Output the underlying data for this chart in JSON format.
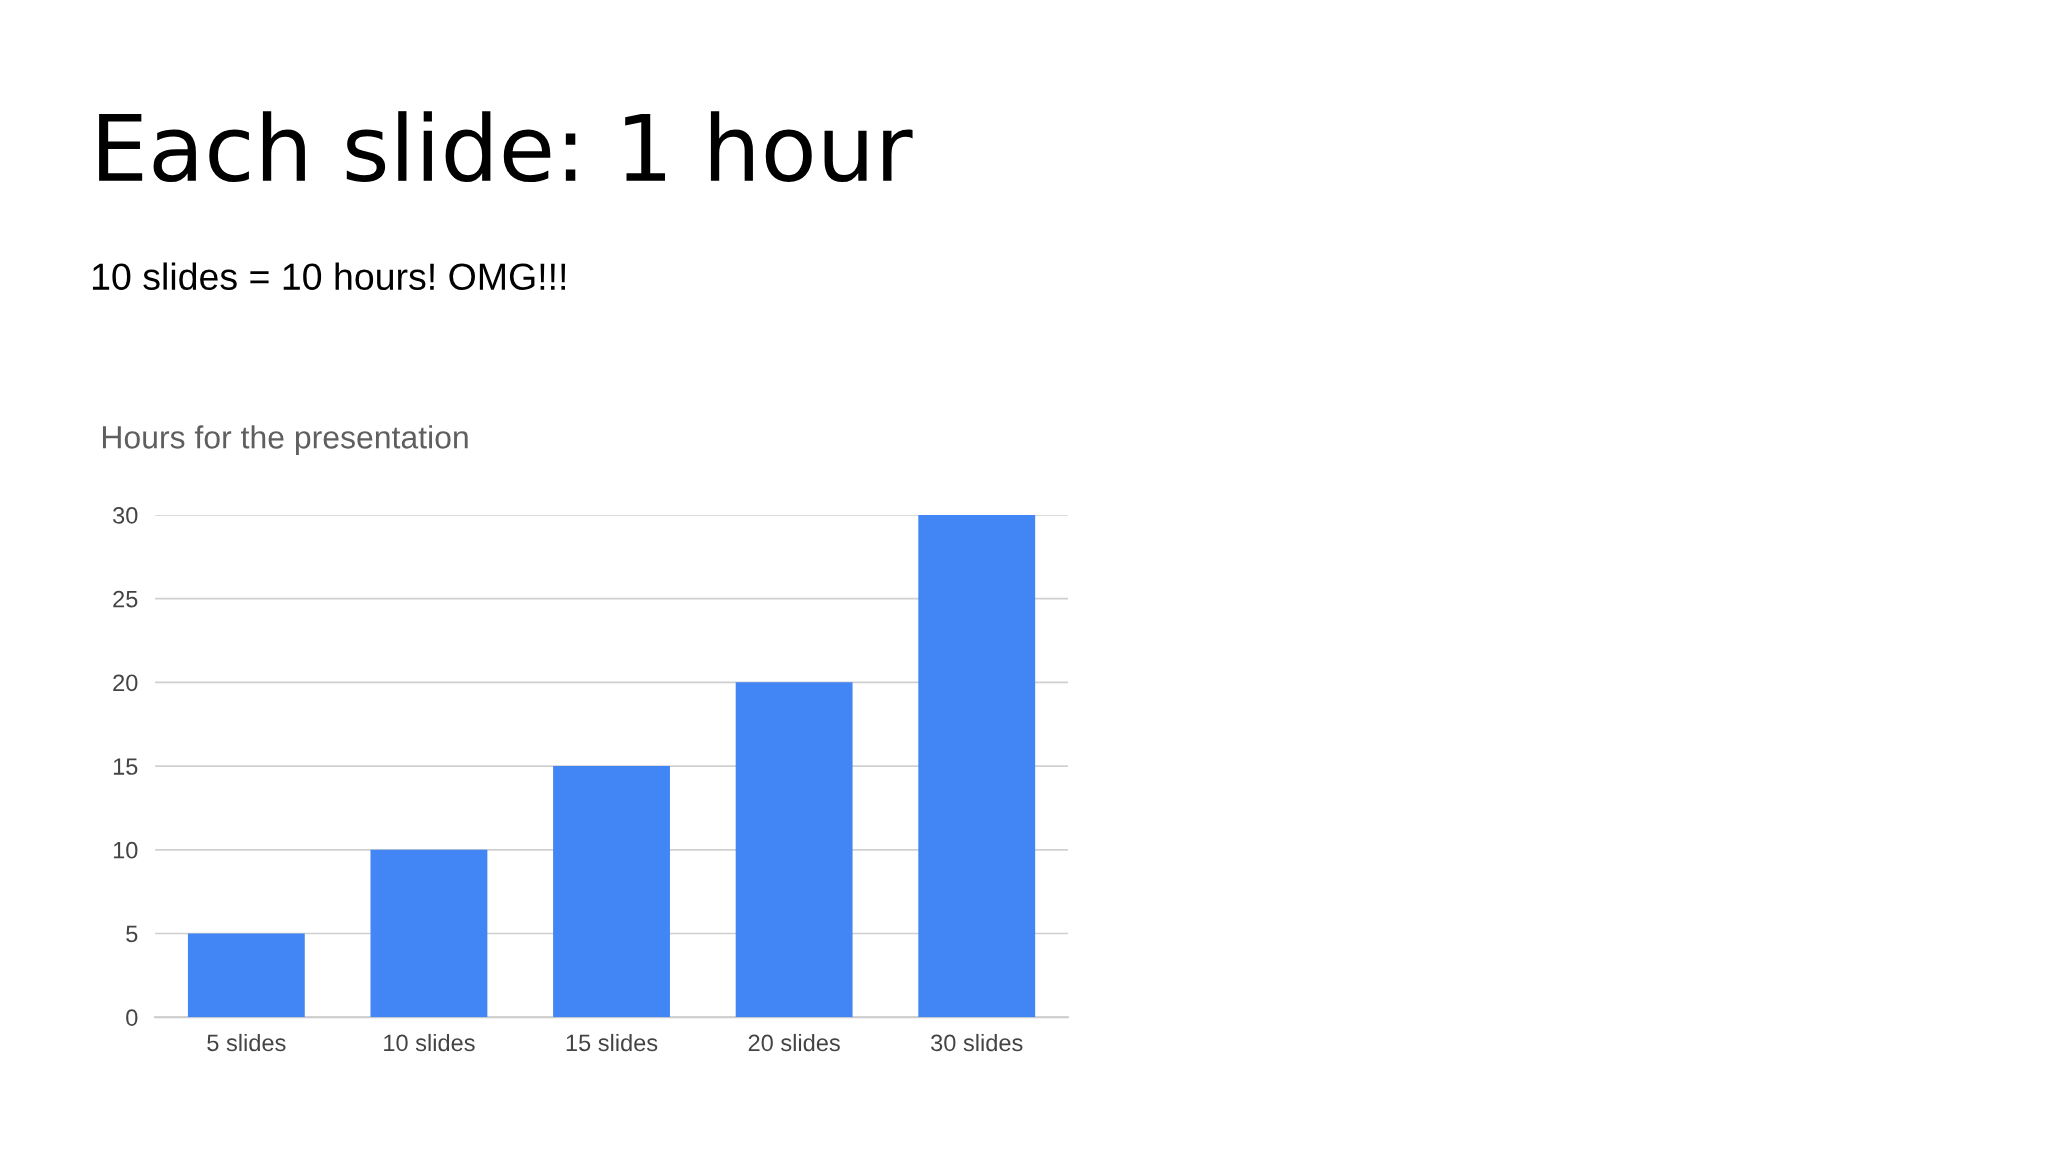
{
  "chart_data": {
    "type": "bar",
    "title": "Each slide: 1 hour",
    "subtitle": "10 slides = 10 hours! OMG!!!",
    "annotations": [
      "Hours for the presentation"
    ],
    "categories": [
      "5 slides",
      "10 slides",
      "15 slides",
      "20 slides",
      "30 slides"
    ],
    "values": [
      5,
      10,
      15,
      20,
      30
    ],
    "color": "#4285f4",
    "ylim": [
      0,
      30
    ],
    "yticks": [
      0,
      5,
      10,
      15,
      20,
      25,
      30
    ],
    "grid": "y",
    "legend": false
  }
}
